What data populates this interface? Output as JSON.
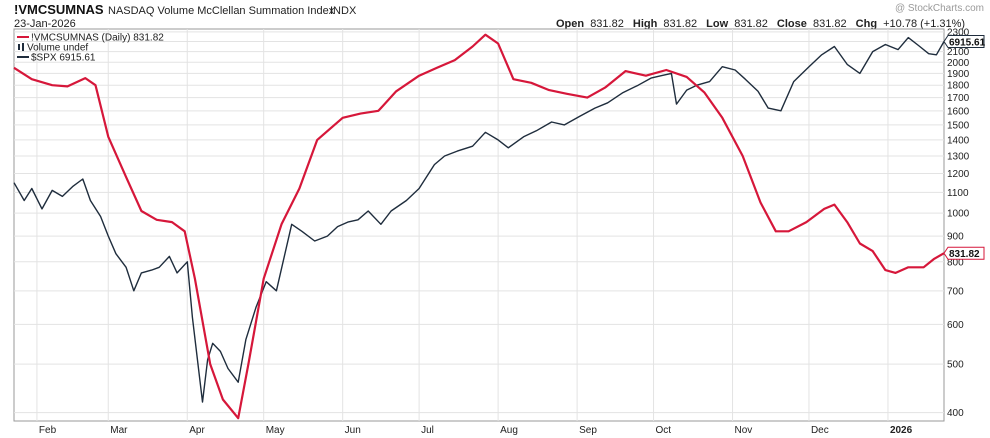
{
  "header": {
    "symbol": "!VMCSUMNAS",
    "name": "NASDAQ Volume McClellan Summation Index",
    "exchange": "INDX",
    "date": "23-Jan-2026",
    "open_label": "Open",
    "open": "831.82",
    "high_label": "High",
    "high": "831.82",
    "low_label": "Low",
    "low": "831.82",
    "close_label": "Close",
    "close": "831.82",
    "chg_label": "Chg",
    "chg": "+10.78 (+1.31%)",
    "watermark": "@ StockCharts.com"
  },
  "legend": [
    {
      "text": "!VMCSUMNAS (Daily) 831.82",
      "color": "#d6173a",
      "marker": "line"
    },
    {
      "text": "Volume undef",
      "color": "#1f2d3d",
      "marker": "bars"
    },
    {
      "text": "$SPX 6915.61",
      "color": "#1f2d3d",
      "marker": "line"
    }
  ],
  "chart_data": {
    "type": "line",
    "y_scale": "log",
    "ylim": [
      385,
      2330
    ],
    "yticks": [
      400,
      500,
      600,
      700,
      800,
      900,
      1000,
      1100,
      1200,
      1300,
      1400,
      1500,
      1600,
      1700,
      1800,
      1900,
      2000,
      2100,
      2200,
      2300
    ],
    "x_range": [
      "2025-01-23",
      "2026-01-23"
    ],
    "month_ticks": [
      {
        "label": "Feb",
        "date": "2025-02-01",
        "bold": false
      },
      {
        "label": "Mar",
        "date": "2025-03-01",
        "bold": false
      },
      {
        "label": "Apr",
        "date": "2025-04-01",
        "bold": false
      },
      {
        "label": "May",
        "date": "2025-05-01",
        "bold": false
      },
      {
        "label": "Jun",
        "date": "2025-06-01",
        "bold": false
      },
      {
        "label": "Jul",
        "date": "2025-07-01",
        "bold": false
      },
      {
        "label": "Aug",
        "date": "2025-08-01",
        "bold": false
      },
      {
        "label": "Sep",
        "date": "2025-09-01",
        "bold": false
      },
      {
        "label": "Oct",
        "date": "2025-10-01",
        "bold": false
      },
      {
        "label": "Nov",
        "date": "2025-11-01",
        "bold": false
      },
      {
        "label": "Dec",
        "date": "2025-12-01",
        "bold": false
      },
      {
        "label": "2026",
        "date": "2026-01-01",
        "bold": true
      }
    ],
    "grid": true,
    "series": [
      {
        "name": "!VMCSUMNAS",
        "color": "#d6173a",
        "last_label": "831.82",
        "points": [
          [
            "2025-01-23",
            1950
          ],
          [
            "2025-01-30",
            1850
          ],
          [
            "2025-02-07",
            1800
          ],
          [
            "2025-02-13",
            1790
          ],
          [
            "2025-02-20",
            1860
          ],
          [
            "2025-02-24",
            1800
          ],
          [
            "2025-03-01",
            1420
          ],
          [
            "2025-03-08",
            1180
          ],
          [
            "2025-03-14",
            1010
          ],
          [
            "2025-03-20",
            970
          ],
          [
            "2025-03-26",
            960
          ],
          [
            "2025-03-31",
            920
          ],
          [
            "2025-04-04",
            740
          ],
          [
            "2025-04-10",
            500
          ],
          [
            "2025-04-15",
            425
          ],
          [
            "2025-04-21",
            390
          ],
          [
            "2025-04-25",
            500
          ],
          [
            "2025-05-01",
            740
          ],
          [
            "2025-05-08",
            950
          ],
          [
            "2025-05-15",
            1120
          ],
          [
            "2025-05-22",
            1400
          ],
          [
            "2025-06-01",
            1550
          ],
          [
            "2025-06-08",
            1580
          ],
          [
            "2025-06-15",
            1600
          ],
          [
            "2025-06-22",
            1750
          ],
          [
            "2025-07-01",
            1880
          ],
          [
            "2025-07-08",
            1950
          ],
          [
            "2025-07-15",
            2020
          ],
          [
            "2025-07-22",
            2150
          ],
          [
            "2025-07-27",
            2270
          ],
          [
            "2025-08-01",
            2180
          ],
          [
            "2025-08-07",
            1850
          ],
          [
            "2025-08-14",
            1820
          ],
          [
            "2025-08-21",
            1760
          ],
          [
            "2025-08-28",
            1730
          ],
          [
            "2025-09-05",
            1700
          ],
          [
            "2025-09-12",
            1780
          ],
          [
            "2025-09-20",
            1920
          ],
          [
            "2025-09-28",
            1880
          ],
          [
            "2025-10-06",
            1930
          ],
          [
            "2025-10-14",
            1870
          ],
          [
            "2025-10-21",
            1740
          ],
          [
            "2025-10-28",
            1550
          ],
          [
            "2025-11-05",
            1300
          ],
          [
            "2025-11-12",
            1050
          ],
          [
            "2025-11-18",
            920
          ],
          [
            "2025-11-23",
            920
          ],
          [
            "2025-11-30",
            960
          ],
          [
            "2025-12-07",
            1020
          ],
          [
            "2025-12-11",
            1040
          ],
          [
            "2025-12-16",
            960
          ],
          [
            "2025-12-21",
            870
          ],
          [
            "2025-12-26",
            840
          ],
          [
            "2025-12-31",
            770
          ],
          [
            "2026-01-04",
            760
          ],
          [
            "2026-01-09",
            780
          ],
          [
            "2026-01-15",
            780
          ],
          [
            "2026-01-19",
            810
          ],
          [
            "2026-01-23",
            832
          ]
        ]
      },
      {
        "name": "$SPX",
        "color": "#1f2d3d",
        "last_label": "6915.61",
        "points": [
          [
            "2025-01-23",
            1150
          ],
          [
            "2025-01-27",
            1060
          ],
          [
            "2025-01-30",
            1120
          ],
          [
            "2025-02-03",
            1020
          ],
          [
            "2025-02-07",
            1110
          ],
          [
            "2025-02-11",
            1080
          ],
          [
            "2025-02-15",
            1130
          ],
          [
            "2025-02-19",
            1170
          ],
          [
            "2025-02-22",
            1060
          ],
          [
            "2025-02-26",
            985
          ],
          [
            "2025-03-01",
            900
          ],
          [
            "2025-03-04",
            830
          ],
          [
            "2025-03-08",
            780
          ],
          [
            "2025-03-11",
            700
          ],
          [
            "2025-03-14",
            760
          ],
          [
            "2025-03-18",
            770
          ],
          [
            "2025-03-21",
            780
          ],
          [
            "2025-03-25",
            820
          ],
          [
            "2025-03-28",
            760
          ],
          [
            "2025-04-01",
            800
          ],
          [
            "2025-04-03",
            620
          ],
          [
            "2025-04-07",
            420
          ],
          [
            "2025-04-09",
            510
          ],
          [
            "2025-04-11",
            550
          ],
          [
            "2025-04-14",
            530
          ],
          [
            "2025-04-17",
            490
          ],
          [
            "2025-04-21",
            460
          ],
          [
            "2025-04-24",
            560
          ],
          [
            "2025-04-28",
            650
          ],
          [
            "2025-05-02",
            730
          ],
          [
            "2025-05-06",
            700
          ],
          [
            "2025-05-12",
            950
          ],
          [
            "2025-05-16",
            920
          ],
          [
            "2025-05-21",
            880
          ],
          [
            "2025-05-26",
            900
          ],
          [
            "2025-05-30",
            940
          ],
          [
            "2025-06-03",
            960
          ],
          [
            "2025-06-07",
            970
          ],
          [
            "2025-06-11",
            1010
          ],
          [
            "2025-06-16",
            950
          ],
          [
            "2025-06-20",
            1010
          ],
          [
            "2025-06-26",
            1060
          ],
          [
            "2025-07-01",
            1120
          ],
          [
            "2025-07-07",
            1250
          ],
          [
            "2025-07-11",
            1300
          ],
          [
            "2025-07-16",
            1330
          ],
          [
            "2025-07-22",
            1360
          ],
          [
            "2025-07-27",
            1450
          ],
          [
            "2025-08-01",
            1400
          ],
          [
            "2025-08-05",
            1350
          ],
          [
            "2025-08-11",
            1420
          ],
          [
            "2025-08-16",
            1460
          ],
          [
            "2025-08-22",
            1520
          ],
          [
            "2025-08-27",
            1500
          ],
          [
            "2025-09-02",
            1560
          ],
          [
            "2025-09-08",
            1620
          ],
          [
            "2025-09-13",
            1660
          ],
          [
            "2025-09-19",
            1740
          ],
          [
            "2025-09-25",
            1800
          ],
          [
            "2025-09-30",
            1860
          ],
          [
            "2025-10-04",
            1880
          ],
          [
            "2025-10-08",
            1900
          ],
          [
            "2025-10-10",
            1650
          ],
          [
            "2025-10-14",
            1760
          ],
          [
            "2025-10-18",
            1800
          ],
          [
            "2025-10-23",
            1830
          ],
          [
            "2025-10-28",
            1960
          ],
          [
            "2025-11-02",
            1930
          ],
          [
            "2025-11-06",
            1850
          ],
          [
            "2025-11-11",
            1750
          ],
          [
            "2025-11-15",
            1620
          ],
          [
            "2025-11-20",
            1600
          ],
          [
            "2025-11-25",
            1830
          ],
          [
            "2025-12-01",
            1960
          ],
          [
            "2025-12-06",
            2070
          ],
          [
            "2025-12-11",
            2150
          ],
          [
            "2025-12-16",
            1980
          ],
          [
            "2025-12-21",
            1900
          ],
          [
            "2025-12-26",
            2100
          ],
          [
            "2025-12-31",
            2170
          ],
          [
            "2026-01-05",
            2120
          ],
          [
            "2026-01-09",
            2240
          ],
          [
            "2026-01-13",
            2160
          ],
          [
            "2026-01-17",
            2080
          ],
          [
            "2026-01-20",
            2070
          ],
          [
            "2026-01-23",
            2200
          ]
        ]
      }
    ]
  }
}
